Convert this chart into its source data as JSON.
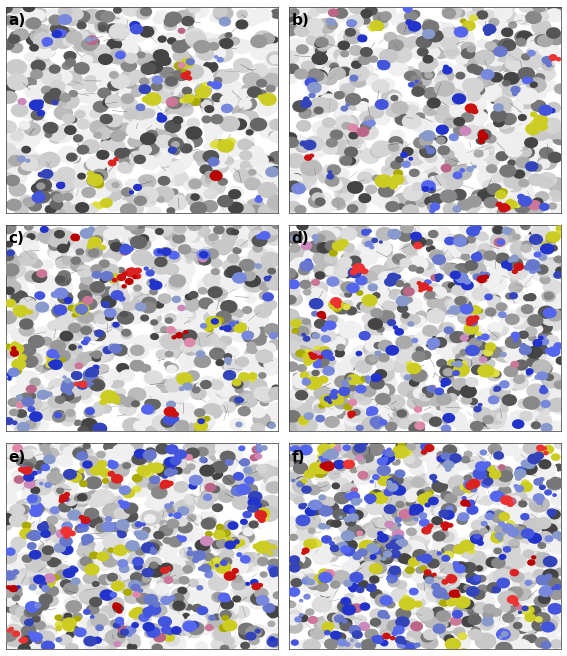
{
  "figure_width": 5.67,
  "figure_height": 6.56,
  "dpi": 100,
  "panels": [
    {
      "label": "a)",
      "row": 0,
      "col": 0
    },
    {
      "label": "b)",
      "row": 0,
      "col": 1
    },
    {
      "label": "c)",
      "row": 1,
      "col": 0
    },
    {
      "label": "d)",
      "row": 1,
      "col": 1
    },
    {
      "label": "e)",
      "row": 2,
      "col": 0
    },
    {
      "label": "f)",
      "row": 2,
      "col": 1
    }
  ],
  "background_color": "#ffffff",
  "panel_bg": "#ffffff",
  "colors": {
    "nafion_dark": "#555555",
    "nafion_mid": "#888888",
    "nafion_light": "#bbbbbb",
    "nafion_white": "#dddddd",
    "water_blue": "#4444cc",
    "water_lightblue": "#8888dd",
    "hydronium_red": "#cc2222",
    "sulfonate_yellow": "#cccc00",
    "pink": "#cc88aa",
    "bond_dark": "#333333"
  },
  "water_counts": [
    30,
    50,
    80,
    110,
    140,
    170
  ],
  "seeds": [
    42,
    123,
    456,
    789,
    321,
    654
  ]
}
